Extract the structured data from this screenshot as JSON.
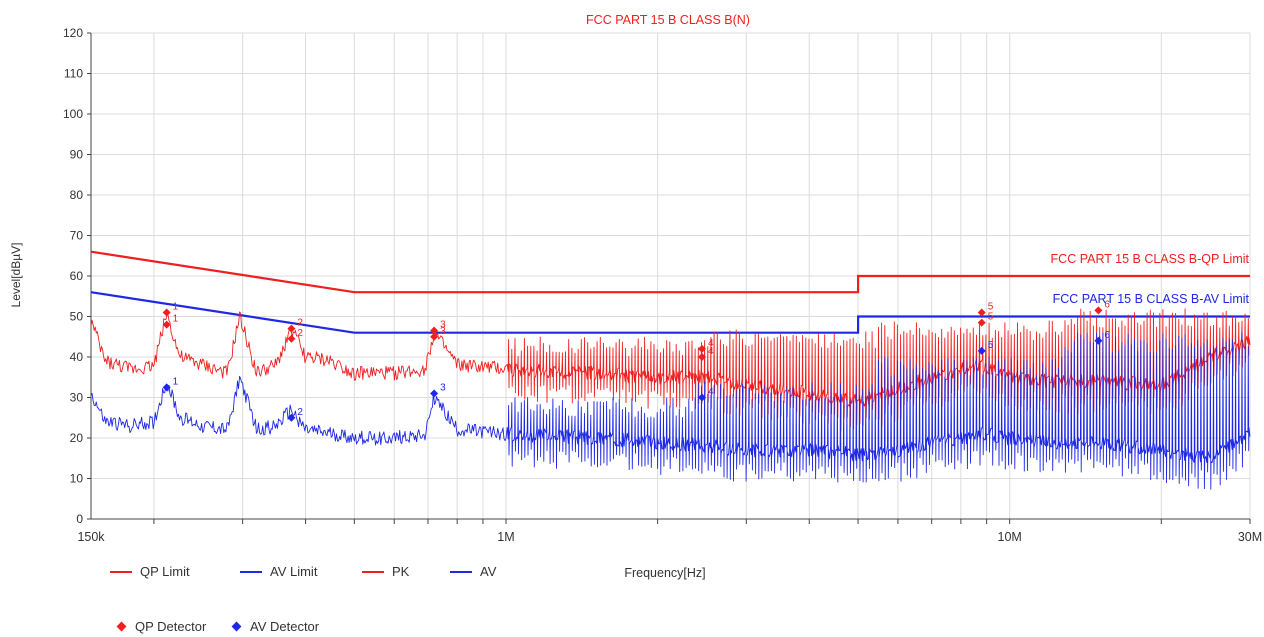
{
  "colors": {
    "red": "#f01e1e",
    "blue": "#1e28e6",
    "grid": "#dcdcdc",
    "axis": "#444444"
  },
  "chart_data": {
    "type": "line",
    "title": "FCC PART 15 B CLASS B(N)",
    "ylabel": "Level[dBµV]",
    "xlabel": "Frequency[Hz]",
    "x_scale": "log",
    "xlim": [
      150000,
      30000000
    ],
    "ylim": [
      0,
      120
    ],
    "y_ticks": [
      0,
      10,
      20,
      30,
      40,
      50,
      60,
      70,
      80,
      90,
      100,
      110,
      120
    ],
    "x_tick_labels": [
      {
        "value": 150000,
        "label": "150k"
      },
      {
        "value": 1000000,
        "label": "1M"
      },
      {
        "value": 10000000,
        "label": "10M"
      },
      {
        "value": 30000000,
        "label": "30M"
      }
    ],
    "grid": true,
    "limit_annotations": {
      "qp": "FCC PART 15 B CLASS B-QP Limit",
      "av": "FCC PART 15 B CLASS B-AV Limit"
    },
    "series": [
      {
        "name": "QP Limit",
        "color": "#f01e1e",
        "x": [
          150000,
          500000,
          500000,
          5000000,
          5000000,
          30000000
        ],
        "y": [
          66,
          56,
          56,
          56,
          60,
          60
        ]
      },
      {
        "name": "AV Limit",
        "color": "#1e28e6",
        "x": [
          150000,
          500000,
          500000,
          5000000,
          5000000,
          30000000
        ],
        "y": [
          56,
          46,
          46,
          46,
          50,
          50
        ]
      },
      {
        "name": "PK",
        "color": "#f01e1e",
        "x": [
          150000,
          160000,
          180000,
          200000,
          212000,
          225000,
          250000,
          280000,
          296000,
          320000,
          350000,
          375000,
          400000,
          450000,
          500000,
          600000,
          690000,
          720000,
          800000,
          1000000,
          1500000,
          2000000,
          2500000,
          3000000,
          4000000,
          5000000,
          6000000,
          7000000,
          8000000,
          8800000,
          10000000,
          12000000,
          15000000,
          20000000,
          25000000,
          30000000
        ],
        "y": [
          49,
          39,
          37,
          38,
          51,
          40,
          38,
          36,
          50,
          36,
          38,
          47,
          40,
          39,
          36,
          36,
          37,
          46,
          38,
          37,
          36,
          35,
          35,
          33,
          31,
          29,
          32,
          35,
          37,
          38,
          35,
          34,
          34,
          33,
          40,
          44
        ],
        "peak_spurs": {
          "x_start": 1000000,
          "x_end": 30000000,
          "top_y": [
            45,
            47,
            49,
            52
          ],
          "note": "dense harmonic comb"
        }
      },
      {
        "name": "AV",
        "color": "#1e28e6",
        "x": [
          150000,
          160000,
          180000,
          200000,
          212000,
          225000,
          250000,
          280000,
          296000,
          320000,
          350000,
          375000,
          400000,
          450000,
          500000,
          600000,
          690000,
          720000,
          800000,
          1000000,
          1500000,
          2000000,
          2500000,
          3000000,
          4000000,
          5000000,
          6000000,
          7000000,
          8000000,
          8800000,
          10000000,
          12000000,
          15000000,
          20000000,
          25000000,
          30000000
        ],
        "y": [
          31,
          24,
          23,
          24,
          34,
          25,
          23,
          22,
          35,
          22,
          23,
          27,
          22,
          21,
          20,
          20,
          21,
          30,
          22,
          21,
          20,
          19,
          18,
          17,
          17,
          16,
          17,
          19,
          20,
          21,
          20,
          19,
          19,
          17,
          15,
          21
        ],
        "peak_spurs": {
          "x_start": 1000000,
          "x_end": 30000000,
          "top_y": [
            30,
            34,
            40,
            46
          ],
          "note": "dense harmonic comb"
        }
      }
    ],
    "qp_detector": [
      {
        "label": "1",
        "x": 212000,
        "y": 51.0
      },
      {
        "label": "1",
        "x": 212000,
        "y": 48.0
      },
      {
        "label": "2",
        "x": 375000,
        "y": 47.0
      },
      {
        "label": "2",
        "x": 375000,
        "y": 44.5
      },
      {
        "label": "3",
        "x": 720000,
        "y": 46.5
      },
      {
        "label": "3",
        "x": 720000,
        "y": 45.0
      },
      {
        "label": "4",
        "x": 2450000,
        "y": 42.0
      },
      {
        "label": "4",
        "x": 2450000,
        "y": 40.0
      },
      {
        "label": "5",
        "x": 8800000,
        "y": 51.0
      },
      {
        "label": "5",
        "x": 8800000,
        "y": 48.5
      },
      {
        "label": "6",
        "x": 15000000,
        "y": 51.5
      }
    ],
    "av_detector": [
      {
        "label": "1",
        "x": 212000,
        "y": 32.5
      },
      {
        "label": "2",
        "x": 375000,
        "y": 25.0
      },
      {
        "label": "3",
        "x": 720000,
        "y": 31.0
      },
      {
        "label": "4",
        "x": 2450000,
        "y": 30.0
      },
      {
        "label": "5",
        "x": 8800000,
        "y": 41.5
      },
      {
        "label": "6",
        "x": 15000000,
        "y": 44.0
      }
    ],
    "legend": {
      "lines": [
        "QP Limit",
        "AV Limit",
        "PK",
        "AV"
      ],
      "markers": [
        "QP Detector",
        "AV Detector"
      ]
    }
  }
}
